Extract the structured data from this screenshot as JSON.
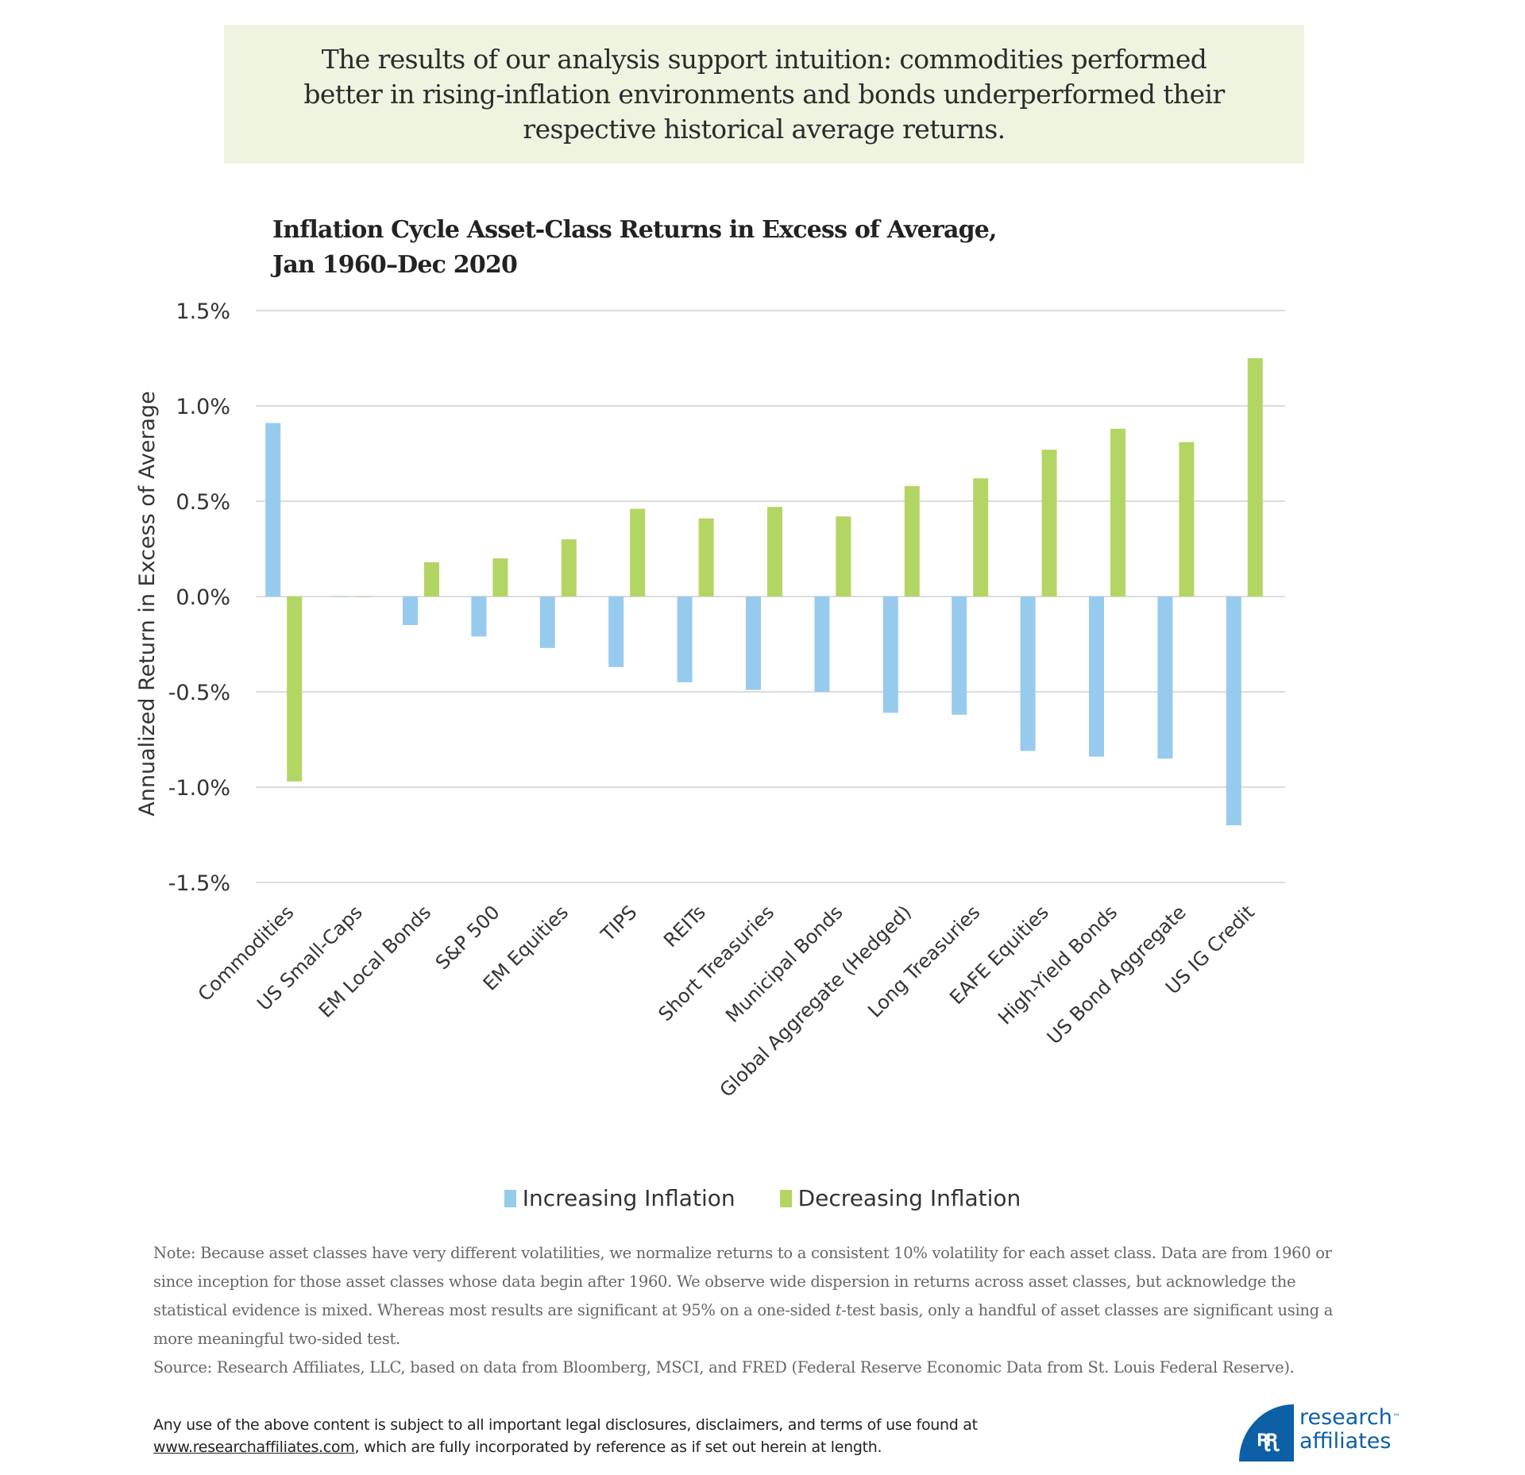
{
  "callout": {
    "text": "The results of our analysis support intuition: commodities performed better in rising-inflation environments and bonds underperformed their respective historical average returns."
  },
  "chart_title_line1": "Inflation Cycle Asset-Class Returns in Excess of Average,",
  "chart_title_line2": "Jan 1960–Dec 2020",
  "colors": {
    "increasing": "#97cbee",
    "decreasing": "#b3d564",
    "grid": "#dcdcdc",
    "callout_bg": "#eff4e1",
    "brand": "#0d5fa6"
  },
  "chart_data": {
    "type": "bar",
    "title": "Inflation Cycle Asset-Class Returns in Excess of Average, Jan 1960–Dec 2020",
    "xlabel": "",
    "ylabel": "Annualized Return in Excess of Average",
    "ylim": [
      -1.5,
      1.5
    ],
    "yticks": [
      1.5,
      1.0,
      0.5,
      0.0,
      -0.5,
      -1.0,
      -1.5
    ],
    "ytick_labels": [
      "1.5%",
      "1.0%",
      "0.5%",
      "0.0%",
      "-0.5%",
      "-1.0%",
      "-1.5%"
    ],
    "units": "%",
    "grid": true,
    "legend_position": "bottom",
    "categories": [
      "Commodities",
      "US Small-Caps",
      "EM Local Bonds",
      "S&P 500",
      "EM Equities",
      "TIPS",
      "REITs",
      "Short Treasuries",
      "Municipal Bonds",
      "Global Aggregate (Hedged)",
      "Long Treasuries",
      "EAFE Equities",
      "High-Yield Bonds",
      "US Bond Aggregate",
      "US IG Credit"
    ],
    "series": [
      {
        "name": "Increasing Inflation",
        "color": "#97cbee",
        "values": [
          0.91,
          0.0,
          -0.15,
          -0.21,
          -0.27,
          -0.37,
          -0.45,
          -0.49,
          -0.5,
          -0.61,
          -0.62,
          -0.81,
          -0.84,
          -0.85,
          -1.2
        ]
      },
      {
        "name": "Decreasing Inflation",
        "color": "#b3d564",
        "values": [
          -0.97,
          0.0,
          0.18,
          0.2,
          0.3,
          0.46,
          0.41,
          0.47,
          0.42,
          0.58,
          0.62,
          0.77,
          0.88,
          0.81,
          1.25
        ]
      }
    ]
  },
  "legend": {
    "items": [
      {
        "label": "Increasing Inflation",
        "color": "#97cbee"
      },
      {
        "label": "Decreasing Inflation",
        "color": "#b3d564"
      }
    ]
  },
  "note": {
    "text_before_t": "Note: Because asset classes have very different volatilities, we normalize returns to a consistent 10% volatility for each asset class. Data are from 1960 or since inception for those asset classes whose data begin after 1960. We observe wide dispersion in returns across asset classes, but acknowledge the statistical evidence is mixed. Whereas most results are significant at 95% on a one-sided ",
    "t_italic": "t",
    "text_after_t": "-test basis, only a handful of asset classes are significant using a more meaningful two-sided test.",
    "source": "Source: Research Affiliates, LLC, based on data from Bloomberg, MSCI, and FRED  (Federal Reserve Economic Data from St. Louis Federal Reserve)."
  },
  "disclaimer": {
    "line1": "Any use of the above content is subject to all important legal disclosures, disclaimers, and terms of use found at",
    "link": "www.researchaffiliates.com",
    "line2_rest": ", which are fully incorporated by reference as if set out herein at length."
  },
  "logo": {
    "glyph": "ꭆꭆ",
    "line1": "research",
    "tm": "™",
    "line2": "affiliates"
  }
}
